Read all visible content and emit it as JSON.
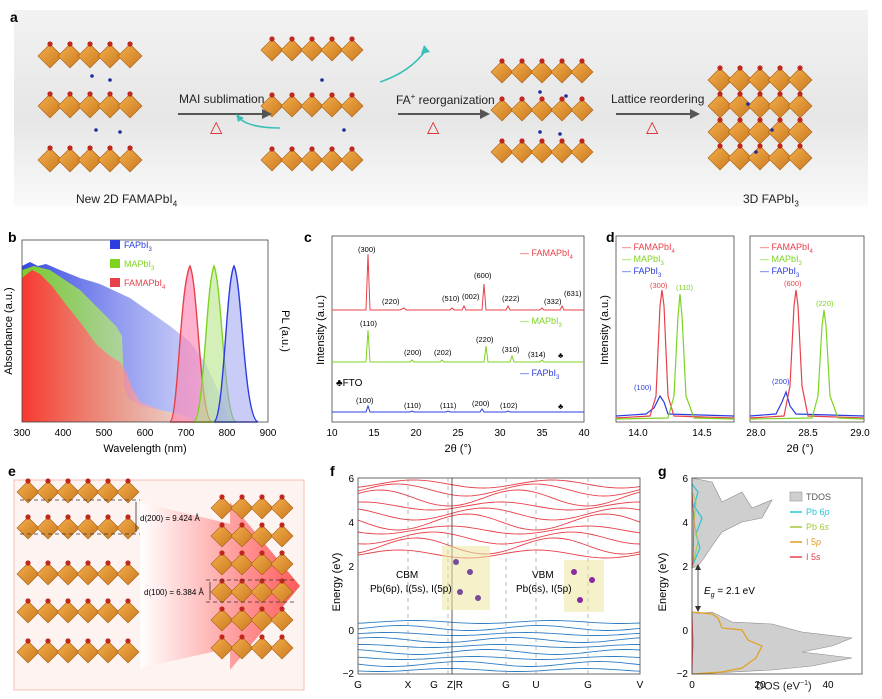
{
  "panel_letters": [
    "a",
    "b",
    "c",
    "d",
    "e",
    "f",
    "g"
  ],
  "panel_a": {
    "structure_left": "New 2D FAMAPbI",
    "structure_left_sub": "4",
    "structure_right": "3D FAPbI",
    "structure_right_sub": "3",
    "step1": "MAI sublimation",
    "step2": "FA",
    "step2_sup": "+",
    "step2_rest": " reorganization",
    "step3": "Lattice reordering",
    "heat_symbol": "△"
  },
  "panel_b": {
    "legend": [
      {
        "name": "FAPbI",
        "sub": "3",
        "color": "#2b3de0"
      },
      {
        "name": "MAPbI",
        "sub": "3",
        "color": "#7ed321"
      },
      {
        "name": "FAMAPbI",
        "sub": "4",
        "color": "#e8404a"
      }
    ],
    "xlabel": "Wavelength (nm)",
    "ylabel_left": "Absorbance (a.u.)",
    "ylabel_right": "PL (a.u.)",
    "xticks": [
      "300",
      "400",
      "500",
      "600",
      "700",
      "800",
      "900"
    ]
  },
  "panel_c": {
    "xlabel": "2θ (°)",
    "ylabel": "Intensity (a.u.)",
    "xticks": [
      "10",
      "15",
      "20",
      "25",
      "30",
      "35",
      "40"
    ],
    "traces": [
      {
        "name": "FAMAPbI",
        "sub": "4",
        "color": "#e8404a",
        "peaks": [
          "(300)",
          "(220)",
          "(510)",
          "(002)",
          "(600)",
          "(222)",
          "(332)",
          "(631)"
        ]
      },
      {
        "name": "MAPbI",
        "sub": "3",
        "color": "#7ed321",
        "peaks": [
          "(110)",
          "(200)",
          "(202)",
          "(220)",
          "(310)",
          "(314)"
        ]
      },
      {
        "name": "FAPbI",
        "sub": "3",
        "color": "#2b3de0",
        "peaks": [
          "(100)",
          "(110)",
          "(111)",
          "(200)",
          "(102)"
        ]
      }
    ],
    "fto_label": "♣FTO",
    "club": "♣"
  },
  "panel_d": {
    "ylabel": "Intensity (a.u.)",
    "xlabel": "2θ (°)",
    "left_xticks": [
      "14.0",
      "14.5"
    ],
    "right_xticks": [
      "28.0",
      "28.5",
      "29.0"
    ],
    "left_peaks": [
      "(300)",
      "(110)",
      "(100)"
    ],
    "right_peaks": [
      "(600)",
      "(220)",
      "(200)"
    ],
    "legend": [
      {
        "name": "FAMAPbI",
        "sub": "4",
        "color": "#e8404a"
      },
      {
        "name": "MAPbI",
        "sub": "3",
        "color": "#7ed321"
      },
      {
        "name": "FAPbI",
        "sub": "3",
        "color": "#2b3de0"
      }
    ]
  },
  "panel_e": {
    "d200": "d(200) = 9.424 Å",
    "d100": "d(100) = 6.384 Å"
  },
  "panel_f": {
    "ylabel": "Energy (eV)",
    "yticks": [
      "6",
      "4",
      "2",
      "0",
      "−2"
    ],
    "kpoints": [
      "G",
      "X",
      "G",
      "Z|R",
      "G",
      "U",
      "G",
      "V"
    ],
    "cbm_title": "CBM",
    "cbm_desc": "Pb(6p), I(5s), I(5p)",
    "vbm_title": "VBM",
    "vbm_desc": "Pb(6s), I(5p)"
  },
  "panel_g": {
    "ylabel": "Energy (eV)",
    "xlabel": "DOS (eV",
    "xlabel_sup": "−1",
    "xlabel_end": ")",
    "yticks": [
      "6",
      "4",
      "2",
      "0",
      "−2"
    ],
    "xticks": [
      "0",
      "20",
      "40"
    ],
    "eg_label": "E",
    "eg_sub": "g",
    "eg_value": " = 2.1 eV",
    "legend": [
      {
        "name": "TDOS",
        "color": "#bbbbbb"
      },
      {
        "name": "Pb 6",
        "italic": "p",
        "color": "#26c6d6"
      },
      {
        "name": "Pb 6",
        "italic": "s",
        "color": "#a5c93a"
      },
      {
        "name": "I 5",
        "italic": "p",
        "color": "#e0a020"
      },
      {
        "name": "I 5",
        "italic": "s",
        "color": "#e8404a"
      }
    ]
  }
}
